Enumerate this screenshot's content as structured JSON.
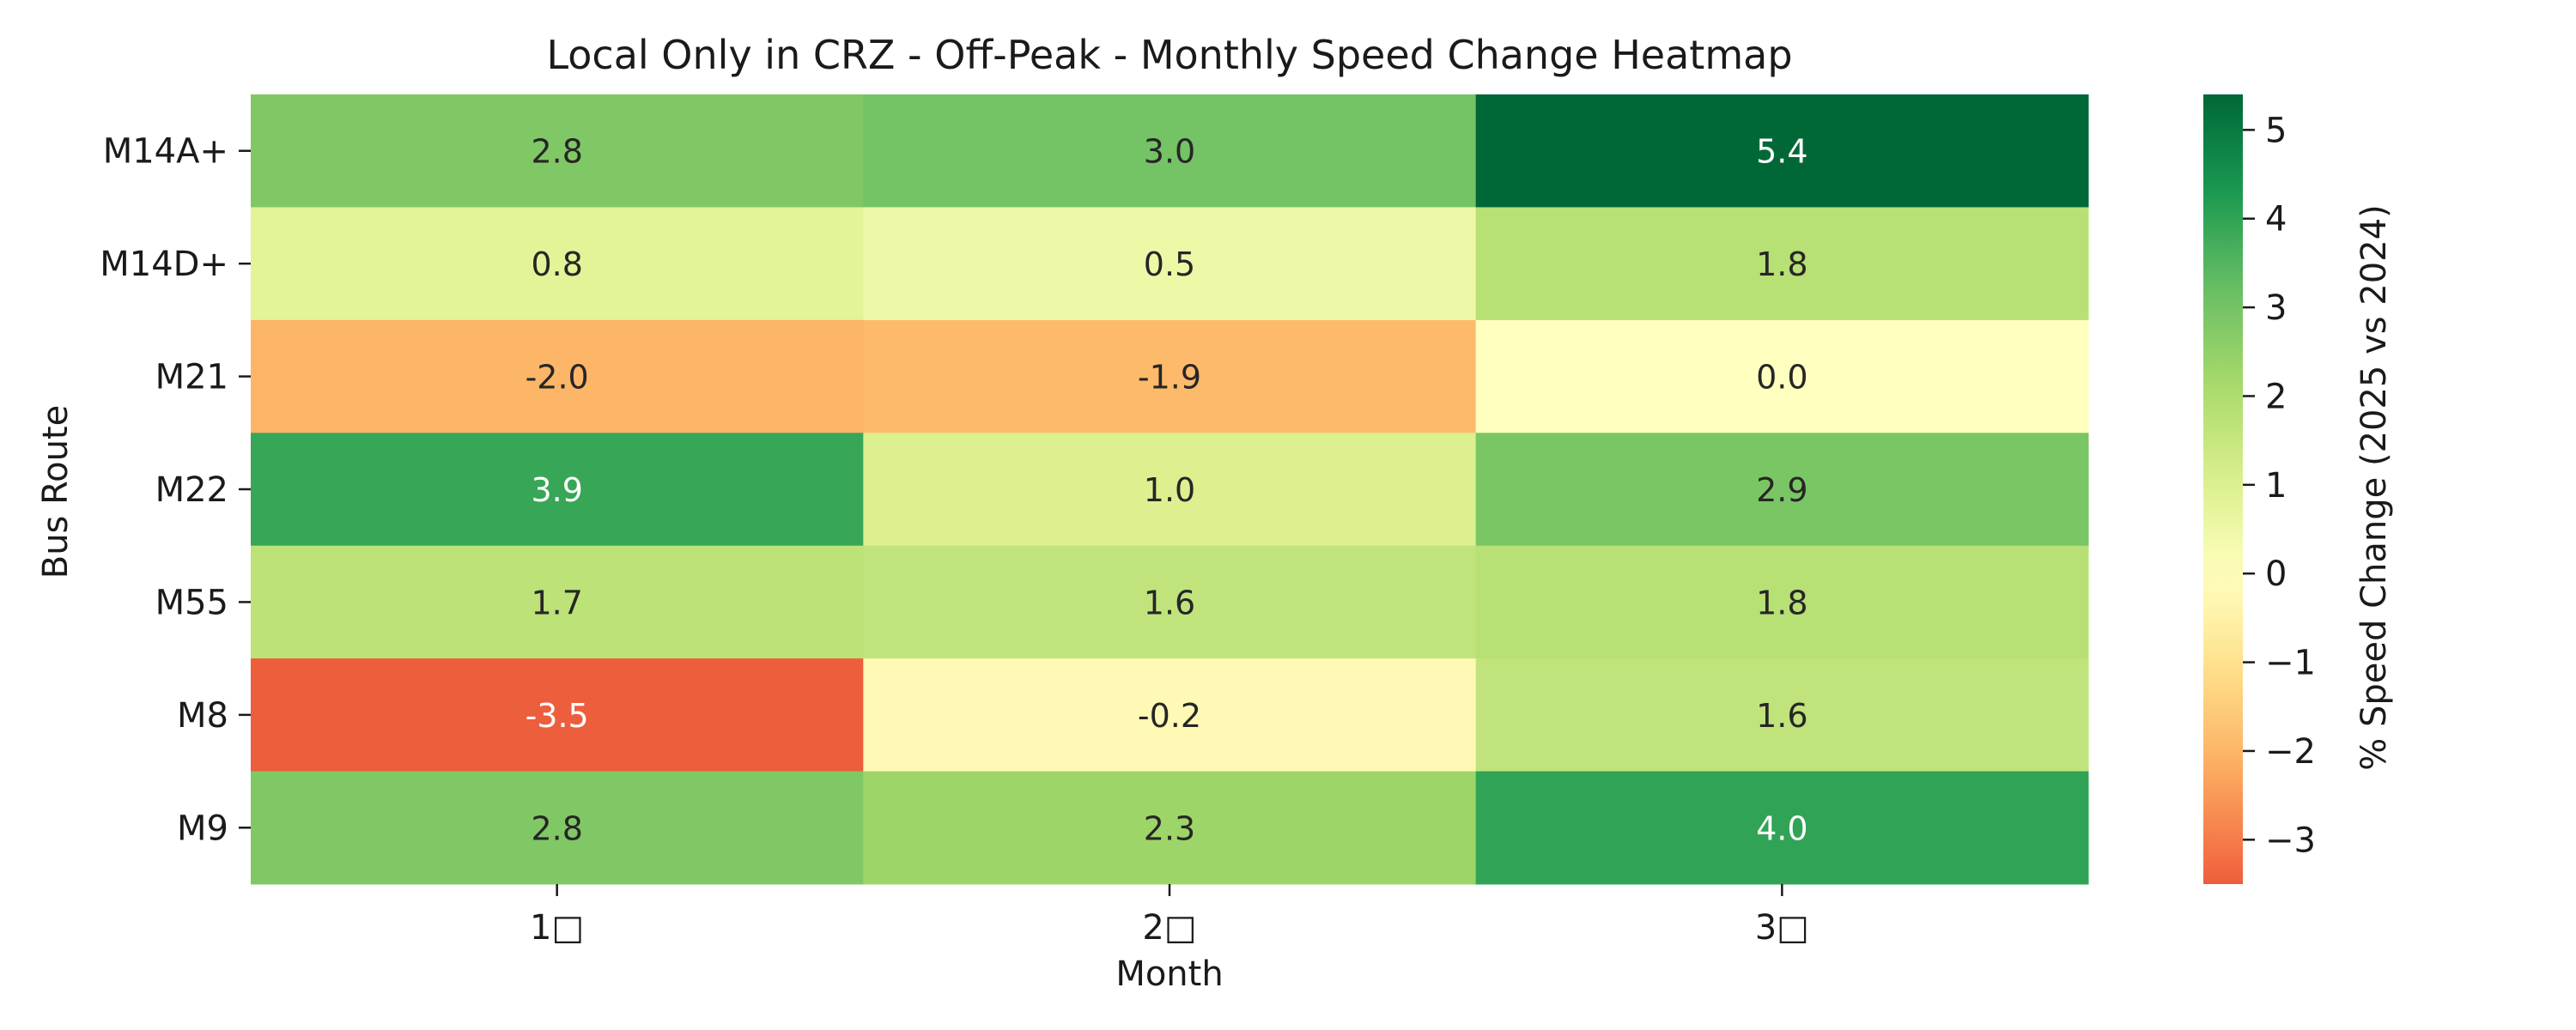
{
  "chart_data": {
    "type": "heatmap",
    "title": "Local Only in CRZ - Off-Peak - Monthly Speed Change Heatmap",
    "xlabel": "Month",
    "ylabel": "Bus Route",
    "x_categories": [
      "1□",
      "2□",
      "3□"
    ],
    "y_categories": [
      "M14A+",
      "M14D+",
      "M21",
      "M22",
      "M55",
      "M8",
      "M9"
    ],
    "values": [
      [
        2.8,
        3.0,
        5.4
      ],
      [
        0.8,
        0.5,
        1.8
      ],
      [
        -2.0,
        -1.9,
        0.0
      ],
      [
        3.9,
        1.0,
        2.9
      ],
      [
        1.7,
        1.6,
        1.8
      ],
      [
        -3.5,
        -0.2,
        1.6
      ],
      [
        2.8,
        2.3,
        4.0
      ]
    ],
    "colorbar": {
      "label": "% Speed Change (2025 vs 2024)",
      "range": [
        -3.5,
        5.4
      ],
      "ticks": [
        5,
        4,
        3,
        2,
        1,
        0,
        -1,
        -2,
        -3
      ],
      "tick_labels": [
        "5",
        "4",
        "3",
        "2",
        "1",
        "0",
        "−1",
        "−2",
        "−3"
      ],
      "colormap": "RdYlGn (centered at 0)"
    },
    "annotations": "cell values shown to one decimal",
    "grid": false
  }
}
